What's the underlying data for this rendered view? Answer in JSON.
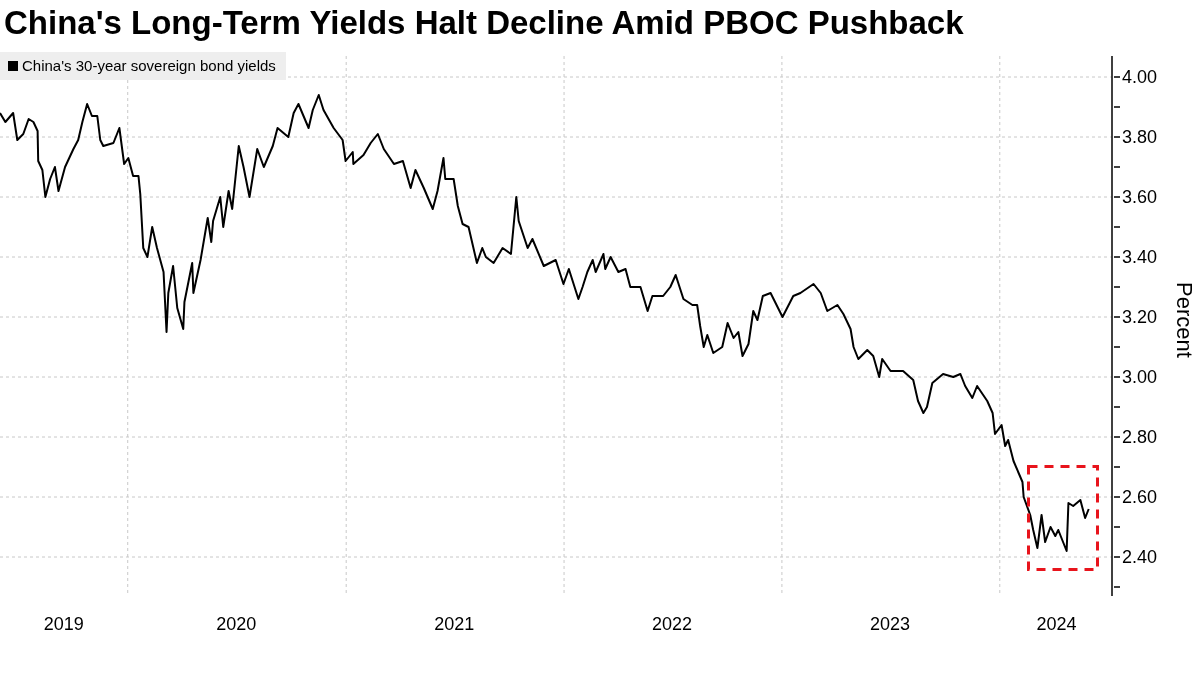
{
  "chart_data": {
    "type": "line",
    "title": "China's Long-Term Yields Halt Decline Amid PBOC Pushback",
    "ylabel": "Percent",
    "legend": "top left",
    "grid": true,
    "marker": "none",
    "line_style": "solid",
    "xlim": [
      "2019-06-01",
      "2024-07-07"
    ],
    "xticks": [
      {
        "value": "2019-09-16",
        "label": "2019"
      },
      {
        "value": "2020-01-01",
        "label": null
      },
      {
        "value": "2020-07-01",
        "label": "2020"
      },
      {
        "value": "2021-01-01",
        "label": null
      },
      {
        "value": "2021-07-01",
        "label": "2021"
      },
      {
        "value": "2022-01-01",
        "label": null
      },
      {
        "value": "2022-07-01",
        "label": "2022"
      },
      {
        "value": "2023-01-01",
        "label": null
      },
      {
        "value": "2023-07-01",
        "label": "2023"
      },
      {
        "value": "2024-01-01",
        "label": null
      },
      {
        "value": "2024-04-05",
        "label": "2024"
      }
    ],
    "ylim": [
      2.27,
      4.07
    ],
    "yticks": [
      {
        "value": 2.3,
        "label": null
      },
      {
        "value": 2.4,
        "label": "2.40"
      },
      {
        "value": 2.5,
        "label": null
      },
      {
        "value": 2.6,
        "label": "2.60"
      },
      {
        "value": 2.7,
        "label": null
      },
      {
        "value": 2.8,
        "label": "2.80"
      },
      {
        "value": 2.9,
        "label": null
      },
      {
        "value": 3.0,
        "label": "3.00"
      },
      {
        "value": 3.1,
        "label": null
      },
      {
        "value": 3.2,
        "label": "3.20"
      },
      {
        "value": 3.3,
        "label": null
      },
      {
        "value": 3.4,
        "label": "3.40"
      },
      {
        "value": 3.5,
        "label": null
      },
      {
        "value": 3.6,
        "label": "3.60"
      },
      {
        "value": 3.7,
        "label": null
      },
      {
        "value": 3.8,
        "label": "3.80"
      },
      {
        "value": 3.9,
        "label": null
      },
      {
        "value": 4.0,
        "label": "4.00"
      }
    ],
    "series": [
      {
        "name": "China's 30-year sovereign bond yields",
        "color": "#000000",
        "x": [
          "2019-06-01",
          "2019-06-10",
          "2019-06-23",
          "2019-06-30",
          "2019-07-10",
          "2019-07-19",
          "2019-07-27",
          "2019-08-03",
          "2019-08-04",
          "2019-08-11",
          "2019-08-16",
          "2019-08-24",
          "2019-09-01",
          "2019-09-07",
          "2019-09-18",
          "2019-10-02",
          "2019-10-10",
          "2019-10-17",
          "2019-10-25",
          "2019-11-02",
          "2019-11-11",
          "2019-11-16",
          "2019-11-21",
          "2019-12-08",
          "2019-12-18",
          "2019-12-26",
          "2020-01-02",
          "2020-01-10",
          "2020-01-19",
          "2020-01-22",
          "2020-01-27",
          "2020-02-03",
          "2020-02-11",
          "2020-02-19",
          "2020-03-01",
          "2020-03-06",
          "2020-03-09",
          "2020-03-17",
          "2020-03-24",
          "2020-04-03",
          "2020-04-05",
          "2020-04-18",
          "2020-04-20",
          "2020-05-02",
          "2020-05-14",
          "2020-05-20",
          "2020-05-23",
          "2020-06-04",
          "2020-06-09",
          "2020-06-18",
          "2020-06-24",
          "2020-07-05",
          "2020-07-13",
          "2020-07-23",
          "2020-08-05",
          "2020-08-16",
          "2020-08-31",
          "2020-09-08",
          "2020-09-26",
          "2020-10-05",
          "2020-10-13",
          "2020-10-30",
          "2020-11-06",
          "2020-11-16",
          "2020-11-24",
          "2020-12-11",
          "2020-12-26",
          "2020-12-31",
          "2021-01-12",
          "2021-01-13",
          "2021-01-30",
          "2021-02-11",
          "2021-02-23",
          "2021-03-05",
          "2021-03-22",
          "2021-04-06",
          "2021-04-19",
          "2021-04-27",
          "2021-05-11",
          "2021-05-26",
          "2021-06-03",
          "2021-06-13",
          "2021-06-16",
          "2021-06-30",
          "2021-07-07",
          "2021-07-15",
          "2021-07-25",
          "2021-08-08",
          "2021-08-17",
          "2021-08-23",
          "2021-09-05",
          "2021-09-20",
          "2021-10-04",
          "2021-10-13",
          "2021-10-17",
          "2021-11-01",
          "2021-11-09",
          "2021-11-28",
          "2021-12-18",
          "2021-12-31",
          "2022-01-09",
          "2022-01-25",
          "2022-02-01",
          "2022-02-09",
          "2022-02-18",
          "2022-02-23",
          "2022-03-08",
          "2022-03-11",
          "2022-03-20",
          "2022-04-02",
          "2022-04-14",
          "2022-04-22",
          "2022-05-09",
          "2022-05-21",
          "2022-05-29",
          "2022-06-16",
          "2022-06-28",
          "2022-07-07",
          "2022-07-20",
          "2022-08-04",
          "2022-08-12",
          "2022-08-17",
          "2022-08-23",
          "2022-08-29",
          "2022-09-08",
          "2022-09-23",
          "2022-10-02",
          "2022-10-12",
          "2022-10-20",
          "2022-10-27",
          "2022-11-06",
          "2022-11-14",
          "2022-11-21",
          "2022-11-30",
          "2022-12-13",
          "2023-01-02",
          "2023-01-20",
          "2023-02-01",
          "2023-02-23",
          "2023-03-07",
          "2023-03-18",
          "2023-04-04",
          "2023-04-14",
          "2023-04-26",
          "2023-05-01",
          "2023-05-09",
          "2023-05-24",
          "2023-06-03",
          "2023-06-13",
          "2023-06-18",
          "2023-07-02",
          "2023-07-23",
          "2023-08-09",
          "2023-08-17",
          "2023-08-26",
          "2023-09-01",
          "2023-09-10",
          "2023-09-28",
          "2023-10-15",
          "2023-10-27",
          "2023-11-04",
          "2023-11-16",
          "2023-11-24",
          "2023-12-11",
          "2023-12-20",
          "2023-12-24",
          "2024-01-04",
          "2024-01-10",
          "2024-01-15",
          "2024-01-24",
          "2024-02-08",
          "2024-02-10",
          "2024-02-21",
          "2024-02-26",
          "2024-03-04",
          "2024-03-11",
          "2024-03-17",
          "2024-03-26",
          "2024-04-03",
          "2024-04-08",
          "2024-04-22",
          "2024-04-25",
          "2024-05-03",
          "2024-05-15",
          "2024-05-23",
          "2024-05-29"
        ],
        "values": [
          3.88,
          3.85,
          3.88,
          3.79,
          3.81,
          3.86,
          3.85,
          3.82,
          3.72,
          3.69,
          3.6,
          3.66,
          3.7,
          3.62,
          3.7,
          3.76,
          3.79,
          3.85,
          3.91,
          3.87,
          3.87,
          3.79,
          3.77,
          3.78,
          3.83,
          3.71,
          3.73,
          3.67,
          3.67,
          3.61,
          3.43,
          3.4,
          3.5,
          3.43,
          3.35,
          3.15,
          3.28,
          3.37,
          3.23,
          3.16,
          3.25,
          3.38,
          3.28,
          3.39,
          3.53,
          3.45,
          3.52,
          3.6,
          3.5,
          3.62,
          3.56,
          3.77,
          3.7,
          3.6,
          3.76,
          3.7,
          3.77,
          3.83,
          3.8,
          3.88,
          3.91,
          3.83,
          3.89,
          3.94,
          3.89,
          3.83,
          3.79,
          3.72,
          3.75,
          3.71,
          3.74,
          3.78,
          3.81,
          3.76,
          3.71,
          3.72,
          3.63,
          3.69,
          3.63,
          3.56,
          3.62,
          3.73,
          3.66,
          3.66,
          3.57,
          3.51,
          3.5,
          3.38,
          3.43,
          3.4,
          3.38,
          3.43,
          3.41,
          3.6,
          3.52,
          3.43,
          3.46,
          3.37,
          3.39,
          3.31,
          3.36,
          3.26,
          3.3,
          3.35,
          3.39,
          3.35,
          3.41,
          3.36,
          3.4,
          3.35,
          3.36,
          3.3,
          3.3,
          3.22,
          3.27,
          3.27,
          3.3,
          3.34,
          3.26,
          3.24,
          3.24,
          3.17,
          3.1,
          3.14,
          3.08,
          3.1,
          3.18,
          3.13,
          3.15,
          3.07,
          3.11,
          3.22,
          3.19,
          3.27,
          3.28,
          3.2,
          3.27,
          3.28,
          3.31,
          3.28,
          3.22,
          3.24,
          3.21,
          3.16,
          3.1,
          3.06,
          3.09,
          3.07,
          3.0,
          3.06,
          3.02,
          3.02,
          2.99,
          2.92,
          2.88,
          2.9,
          2.98,
          3.01,
          3.0,
          3.01,
          2.97,
          2.93,
          2.97,
          2.92,
          2.88,
          2.81,
          2.84,
          2.77,
          2.79,
          2.72,
          2.65,
          2.6,
          2.54,
          2.49,
          2.43,
          2.54,
          2.45,
          2.5,
          2.47,
          2.49,
          2.42,
          2.58,
          2.57,
          2.59,
          2.53,
          2.56
        ]
      }
    ]
  }
}
